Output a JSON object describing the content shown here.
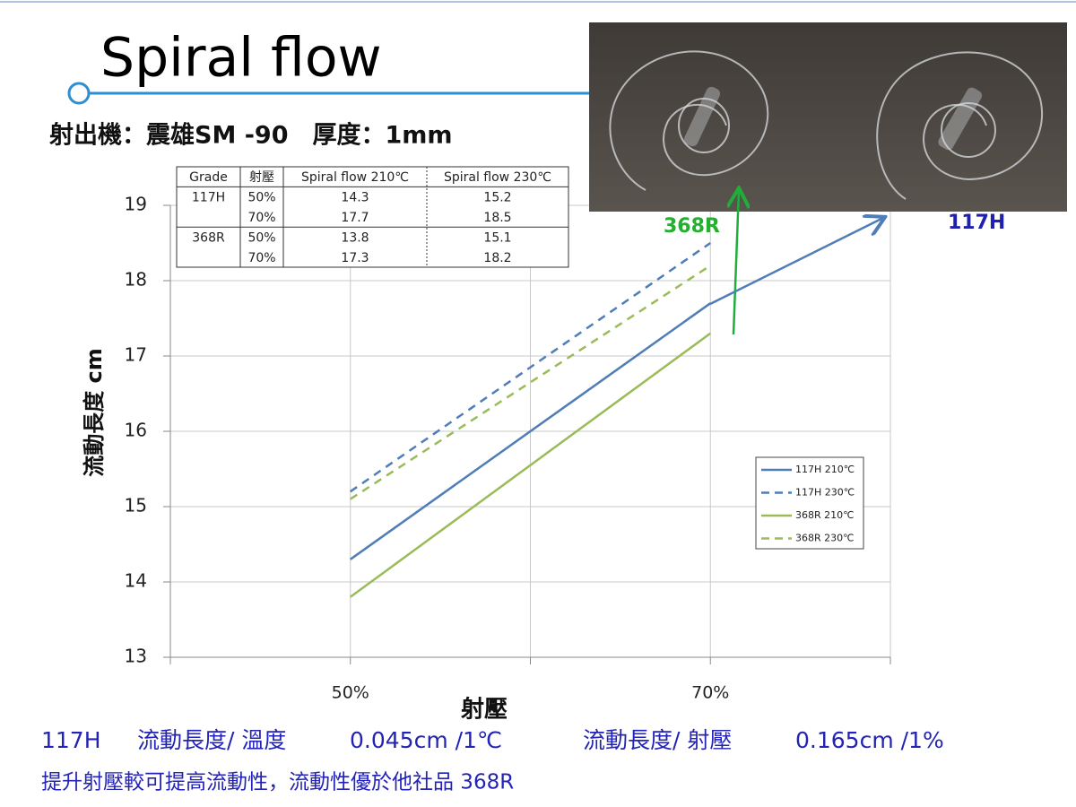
{
  "title": "Spiral flow",
  "subtitle": "射出機：震雄SM -90　厚度：1mm",
  "table": {
    "header": [
      "Grade",
      "射壓",
      "Spiral flow 210℃",
      "Spiral flow 230℃"
    ],
    "groups": [
      {
        "grade": "117H",
        "rows": [
          [
            "50%",
            14.3,
            15.2
          ],
          [
            "70%",
            17.7,
            18.5
          ]
        ]
      },
      {
        "grade": "368R",
        "rows": [
          [
            "50%",
            13.8,
            15.1
          ],
          [
            "70%",
            17.3,
            18.2
          ]
        ]
      }
    ]
  },
  "photo_labels": {
    "left": "368R",
    "right": "117H"
  },
  "notes": {
    "grade": "117H",
    "temp_label": "流動長度/ 溫度",
    "temp_value": "0.045cm /1℃",
    "pressure_label": "流動長度/ 射壓",
    "pressure_value": "0.165cm /1%",
    "conclusion": "提升射壓較可提高流動性，流動性優於他社品 368R"
  },
  "chart_data": {
    "type": "line",
    "x_label": "射壓",
    "y_label": "流動長度 cm",
    "x": [
      50,
      70
    ],
    "xlim": [
      40,
      80
    ],
    "xticks": [
      {
        "value": 50,
        "label": "50%"
      },
      {
        "value": 70,
        "label": "70%"
      }
    ],
    "xminorticks": [
      60
    ],
    "ylim": [
      13,
      19
    ],
    "yticks": [
      13,
      14,
      15,
      16,
      17,
      18,
      19
    ],
    "grid": true,
    "legend": "lower right",
    "series": [
      {
        "name": "117H 210℃",
        "color": "#4f7db8",
        "dash": false,
        "values": [
          14.3,
          17.7
        ]
      },
      {
        "name": "117H 230℃",
        "color": "#4f7db8",
        "dash": true,
        "values": [
          15.2,
          18.5
        ]
      },
      {
        "name": "368R 210℃",
        "color": "#9bbb59",
        "dash": false,
        "values": [
          13.8,
          17.3
        ]
      },
      {
        "name": "368R 230℃",
        "color": "#9bbb59",
        "dash": true,
        "values": [
          15.1,
          18.2
        ]
      }
    ]
  }
}
